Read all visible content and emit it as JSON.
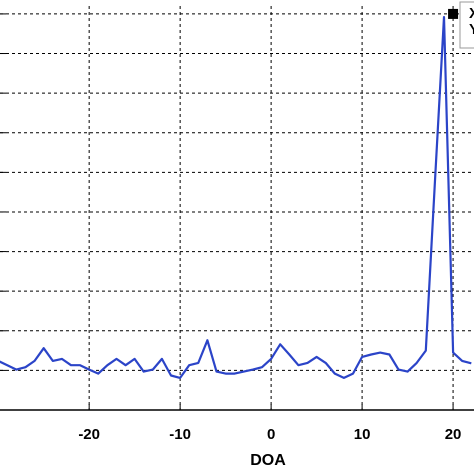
{
  "chart_data": {
    "type": "line",
    "title": "",
    "xlabel": "DOA",
    "ylabel": "",
    "xlim": [
      -29.8,
      22.3
    ],
    "ylim": [
      0,
      1.02
    ],
    "x_ticks": [
      -20,
      -10,
      0,
      10,
      20
    ],
    "x_tick_labels": [
      "-20",
      "-10",
      "0",
      "10",
      "20"
    ],
    "y_grid_values": [
      0.1,
      0.2,
      0.3,
      0.4,
      0.5,
      0.6,
      0.7,
      0.8,
      0.9,
      1.0
    ],
    "grid": true,
    "line_color": "#2b44c8",
    "series": [
      {
        "x": [
          -30,
          -29,
          -28,
          -27,
          -26,
          -25,
          -24,
          -23,
          -22,
          -21,
          -20,
          -19,
          -18,
          -17,
          -16,
          -15,
          -14,
          -13,
          -12,
          -11,
          -10,
          -9,
          -8,
          -7,
          -6,
          -5,
          -4,
          -3,
          -2,
          -1,
          0,
          1,
          2,
          3,
          4,
          5,
          6,
          7,
          8,
          9,
          10,
          11,
          12,
          13,
          14,
          15,
          16,
          17,
          18,
          19,
          20,
          21,
          22
        ],
        "y": [
          0.124,
          0.113,
          0.102,
          0.108,
          0.124,
          0.156,
          0.124,
          0.129,
          0.113,
          0.113,
          0.102,
          0.092,
          0.113,
          0.129,
          0.113,
          0.129,
          0.097,
          0.102,
          0.129,
          0.087,
          0.081,
          0.113,
          0.119,
          0.176,
          0.097,
          0.092,
          0.092,
          0.097,
          0.102,
          0.108,
          0.129,
          0.166,
          0.14,
          0.113,
          0.119,
          0.134,
          0.119,
          0.092,
          0.081,
          0.092,
          0.134,
          0.14,
          0.145,
          0.14,
          0.102,
          0.097,
          0.119,
          0.15,
          0.575,
          0.992,
          0.145,
          0.124,
          0.118
        ]
      }
    ],
    "markers": [
      {
        "label": "▪",
        "x": 20,
        "y": 1.0
      }
    ],
    "annotation_text": [
      "X",
      "Y"
    ]
  }
}
